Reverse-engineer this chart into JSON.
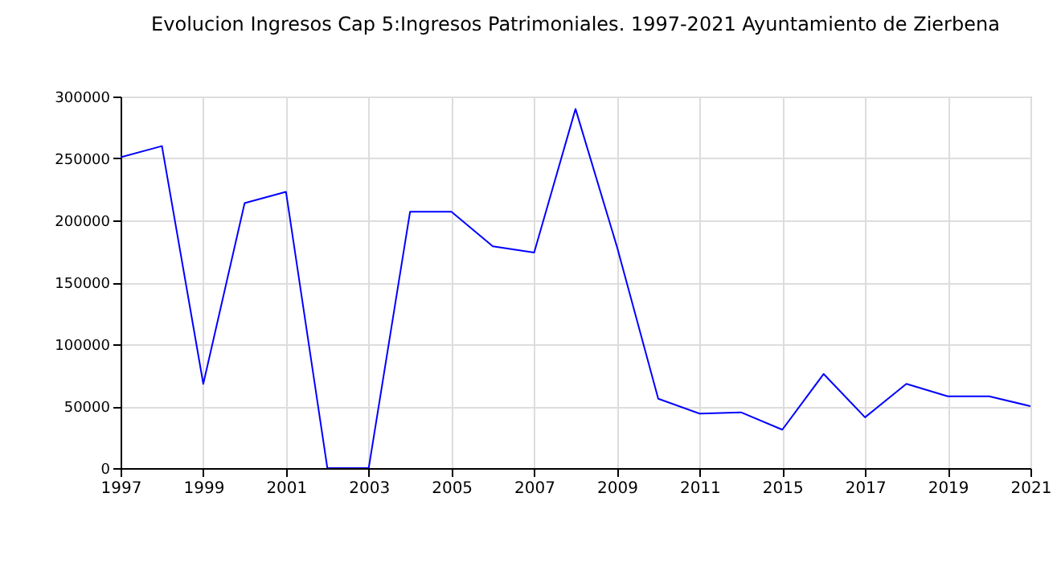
{
  "chart_data": {
    "type": "line",
    "title": "Evolucion Ingresos Cap 5:Ingresos Patrimoniales. 1997-2021 Ayuntamiento de Zierbena",
    "categories": [
      "1997",
      null,
      "1999",
      null,
      "2001",
      null,
      "2003",
      null,
      "2005",
      null,
      "2007",
      null,
      "2009",
      null,
      "2011",
      null,
      "2015",
      null,
      "2017",
      null,
      "2019",
      null,
      "2021"
    ],
    "series": [
      {
        "color": "#0000ff",
        "values": [
          251000,
          260000,
          68000,
          214000,
          223000,
          0,
          0,
          207000,
          207000,
          179000,
          174000,
          290000,
          179000,
          56000,
          44000,
          45000,
          31000,
          76000,
          41000,
          68000,
          58000,
          58000,
          50000
        ]
      }
    ],
    "ylim": [
      0,
      300000
    ],
    "yticks": [
      0,
      50000,
      100000,
      150000,
      200000,
      250000,
      300000
    ],
    "grid": true
  }
}
